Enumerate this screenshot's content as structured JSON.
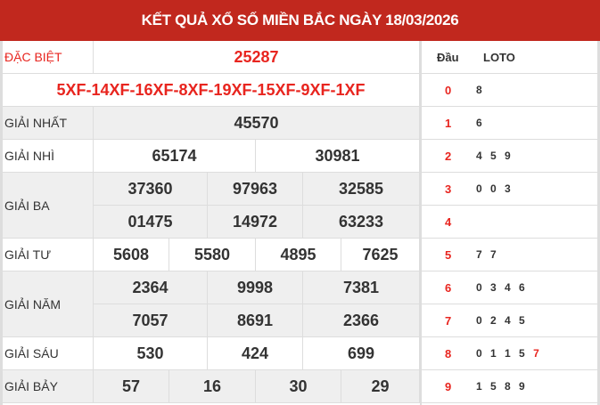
{
  "title": "KẾT QUẢ XỔ SỐ MIỀN BẮC NGÀY 18/03/2026",
  "prizes": [
    {
      "label": "ĐẶC BIỆT",
      "rows": [
        [
          "25287"
        ]
      ],
      "red": true
    },
    {
      "label": "",
      "rows": [
        [
          "5XF-14XF-16XF-8XF-19XF-15XF-9XF-1XF"
        ]
      ],
      "red": true,
      "full": true
    },
    {
      "label": "GIẢI NHẤT",
      "rows": [
        [
          "45570"
        ]
      ]
    },
    {
      "label": "GIẢI NHÌ",
      "rows": [
        [
          "65174",
          "30981"
        ]
      ]
    },
    {
      "label": "GIẢI BA",
      "rows": [
        [
          "37360",
          "97963",
          "32585"
        ],
        [
          "01475",
          "14972",
          "63233"
        ]
      ]
    },
    {
      "label": "GIẢI TƯ",
      "rows": [
        [
          "5608",
          "5580",
          "4895",
          "7625"
        ]
      ]
    },
    {
      "label": "GIẢI NĂM",
      "rows": [
        [
          "2364",
          "9998",
          "7381"
        ],
        [
          "7057",
          "8691",
          "2366"
        ]
      ]
    },
    {
      "label": "GIẢI SÁU",
      "rows": [
        [
          "530",
          "424",
          "699"
        ]
      ]
    },
    {
      "label": "GIẢI BẢY",
      "rows": [
        [
          "57",
          "16",
          "30",
          "29"
        ]
      ]
    }
  ],
  "loto": {
    "head_label": "Đầu",
    "loto_label": "LOTO",
    "rows": [
      {
        "dau": "0",
        "loto": [
          "8"
        ]
      },
      {
        "dau": "1",
        "loto": [
          "6"
        ]
      },
      {
        "dau": "2",
        "loto": [
          "4",
          "5",
          "9"
        ]
      },
      {
        "dau": "3",
        "loto": [
          "0",
          "0",
          "3"
        ]
      },
      {
        "dau": "4",
        "loto": []
      },
      {
        "dau": "5",
        "loto": [
          "7",
          "7"
        ]
      },
      {
        "dau": "6",
        "loto": [
          "0",
          "3",
          "4",
          "6"
        ]
      },
      {
        "dau": "7",
        "loto": [
          "0",
          "2",
          "4",
          "5"
        ]
      },
      {
        "dau": "8",
        "loto": [
          "0",
          "1",
          "1",
          "5",
          "7"
        ],
        "special_index": 4
      },
      {
        "dau": "9",
        "loto": [
          "1",
          "5",
          "8",
          "9"
        ]
      }
    ]
  },
  "colors": {
    "header": "#c1281e",
    "special": "#e8251f",
    "alt_row": "#efefef"
  }
}
